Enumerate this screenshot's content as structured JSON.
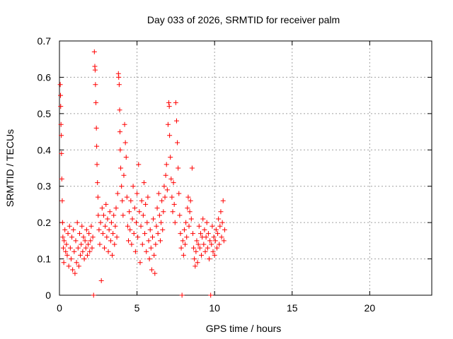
{
  "chart_data": {
    "type": "scatter",
    "title": "Day 033 of 2026, SRMTID for receiver palm",
    "xlabel": "GPS time / hours",
    "ylabel": "SRMTID / TECUs",
    "xlim": [
      0,
      24
    ],
    "ylim": [
      0,
      0.7
    ],
    "xticks": [
      0,
      5,
      10,
      15,
      20
    ],
    "yticks": [
      0,
      0.1,
      0.2,
      0.3,
      0.4,
      0.5,
      0.6,
      0.7
    ],
    "grid": true,
    "marker": "+",
    "color": "#ff0000",
    "series": [
      {
        "name": "SRMTID",
        "points": [
          [
            0.05,
            0.58
          ],
          [
            0.07,
            0.55
          ],
          [
            0.08,
            0.52
          ],
          [
            0.1,
            0.47
          ],
          [
            0.12,
            0.44
          ],
          [
            0.13,
            0.39
          ],
          [
            0.15,
            0.32
          ],
          [
            0.18,
            0.26
          ],
          [
            0.2,
            0.2
          ],
          [
            0.22,
            0.16
          ],
          [
            0.25,
            0.13
          ],
          [
            0.28,
            0.09
          ],
          [
            0.3,
            0.15
          ],
          [
            0.35,
            0.18
          ],
          [
            0.4,
            0.12
          ],
          [
            0.45,
            0.14
          ],
          [
            0.5,
            0.11
          ],
          [
            0.55,
            0.17
          ],
          [
            0.6,
            0.08
          ],
          [
            0.65,
            0.19
          ],
          [
            0.7,
            0.13
          ],
          [
            0.75,
            0.1
          ],
          [
            0.8,
            0.16
          ],
          [
            0.85,
            0.07
          ],
          [
            0.9,
            0.18
          ],
          [
            0.95,
            0.12
          ],
          [
            1.0,
            0.06
          ],
          [
            1.05,
            0.15
          ],
          [
            1.1,
            0.09
          ],
          [
            1.15,
            0.2
          ],
          [
            1.2,
            0.13
          ],
          [
            1.25,
            0.08
          ],
          [
            1.3,
            0.17
          ],
          [
            1.35,
            0.11
          ],
          [
            1.4,
            0.14
          ],
          [
            1.45,
            0.19
          ],
          [
            1.5,
            0.12
          ],
          [
            1.55,
            0.16
          ],
          [
            1.6,
            0.1
          ],
          [
            1.65,
            0.15
          ],
          [
            1.7,
            0.13
          ],
          [
            1.75,
            0.18
          ],
          [
            1.8,
            0.11
          ],
          [
            1.85,
            0.14
          ],
          [
            1.9,
            0.17
          ],
          [
            1.95,
            0.12
          ],
          [
            2.0,
            0.15
          ],
          [
            2.05,
            0.19
          ],
          [
            2.1,
            0.13
          ],
          [
            2.15,
            0.16
          ],
          [
            2.2,
            0.0
          ],
          [
            2.25,
            0.67
          ],
          [
            2.28,
            0.63
          ],
          [
            2.3,
            0.62
          ],
          [
            2.32,
            0.58
          ],
          [
            2.35,
            0.53
          ],
          [
            2.38,
            0.46
          ],
          [
            2.4,
            0.41
          ],
          [
            2.42,
            0.36
          ],
          [
            2.45,
            0.31
          ],
          [
            2.48,
            0.27
          ],
          [
            2.5,
            0.22
          ],
          [
            2.55,
            0.18
          ],
          [
            2.6,
            0.14
          ],
          [
            2.65,
            0.2
          ],
          [
            2.7,
            0.04
          ],
          [
            2.75,
            0.24
          ],
          [
            2.8,
            0.17
          ],
          [
            2.85,
            0.22
          ],
          [
            2.9,
            0.13
          ],
          [
            2.95,
            0.19
          ],
          [
            3.0,
            0.25
          ],
          [
            3.05,
            0.16
          ],
          [
            3.1,
            0.21
          ],
          [
            3.15,
            0.12
          ],
          [
            3.2,
            0.18
          ],
          [
            3.25,
            0.23
          ],
          [
            3.3,
            0.15
          ],
          [
            3.35,
            0.2
          ],
          [
            3.4,
            0.11
          ],
          [
            3.45,
            0.17
          ],
          [
            3.5,
            0.22
          ],
          [
            3.55,
            0.14
          ],
          [
            3.6,
            0.19
          ],
          [
            3.65,
            0.24
          ],
          [
            3.7,
            0.16
          ],
          [
            3.75,
            0.28
          ],
          [
            3.8,
            0.61
          ],
          [
            3.82,
            0.6
          ],
          [
            3.85,
            0.58
          ],
          [
            3.88,
            0.51
          ],
          [
            3.9,
            0.45
          ],
          [
            3.92,
            0.4
          ],
          [
            3.95,
            0.35
          ],
          [
            4.0,
            0.3
          ],
          [
            4.05,
            0.26
          ],
          [
            4.1,
            0.22
          ],
          [
            4.15,
            0.33
          ],
          [
            4.2,
            0.47
          ],
          [
            4.25,
            0.42
          ],
          [
            4.3,
            0.38
          ],
          [
            4.35,
            0.27
          ],
          [
            4.4,
            0.19
          ],
          [
            4.45,
            0.15
          ],
          [
            4.5,
            0.23
          ],
          [
            4.55,
            0.18
          ],
          [
            4.6,
            0.26
          ],
          [
            4.65,
            0.14
          ],
          [
            4.7,
            0.21
          ],
          [
            4.75,
            0.3
          ],
          [
            4.8,
            0.17
          ],
          [
            4.85,
            0.24
          ],
          [
            4.9,
            0.12
          ],
          [
            4.95,
            0.2
          ],
          [
            5.0,
            0.28
          ],
          [
            5.05,
            0.16
          ],
          [
            5.1,
            0.36
          ],
          [
            5.15,
            0.23
          ],
          [
            5.2,
            0.09
          ],
          [
            5.25,
            0.19
          ],
          [
            5.3,
            0.26
          ],
          [
            5.35,
            0.14
          ],
          [
            5.4,
            0.22
          ],
          [
            5.45,
            0.31
          ],
          [
            5.5,
            0.17
          ],
          [
            5.55,
            0.25
          ],
          [
            5.6,
            0.12
          ],
          [
            5.65,
            0.2
          ],
          [
            5.7,
            0.27
          ],
          [
            5.75,
            0.15
          ],
          [
            5.8,
            0.1
          ],
          [
            5.85,
            0.18
          ],
          [
            5.9,
            0.13
          ],
          [
            5.95,
            0.07
          ],
          [
            6.0,
            0.16
          ],
          [
            6.05,
            0.21
          ],
          [
            6.1,
            0.11
          ],
          [
            6.15,
            0.06
          ],
          [
            6.2,
            0.14
          ],
          [
            6.25,
            0.19
          ],
          [
            6.3,
            0.24
          ],
          [
            6.35,
            0.17
          ],
          [
            6.4,
            0.28
          ],
          [
            6.45,
            0.22
          ],
          [
            6.5,
            0.15
          ],
          [
            6.55,
            0.2
          ],
          [
            6.6,
            0.26
          ],
          [
            6.65,
            0.18
          ],
          [
            6.7,
            0.23
          ],
          [
            6.75,
            0.3
          ],
          [
            6.8,
            0.27
          ],
          [
            6.85,
            0.33
          ],
          [
            6.9,
            0.36
          ],
          [
            6.95,
            0.29
          ],
          [
            7.0,
            0.47
          ],
          [
            7.05,
            0.53
          ],
          [
            7.08,
            0.52
          ],
          [
            7.1,
            0.44
          ],
          [
            7.15,
            0.38
          ],
          [
            7.2,
            0.32
          ],
          [
            7.25,
            0.27
          ],
          [
            7.3,
            0.23
          ],
          [
            7.35,
            0.31
          ],
          [
            7.4,
            0.25
          ],
          [
            7.45,
            0.2
          ],
          [
            7.5,
            0.53
          ],
          [
            7.55,
            0.48
          ],
          [
            7.6,
            0.42
          ],
          [
            7.65,
            0.35
          ],
          [
            7.7,
            0.28
          ],
          [
            7.75,
            0.22
          ],
          [
            7.8,
            0.17
          ],
          [
            7.85,
            0.13
          ],
          [
            7.9,
            0.0
          ],
          [
            7.95,
            0.15
          ],
          [
            8.0,
            0.11
          ],
          [
            8.05,
            0.18
          ],
          [
            8.1,
            0.14
          ],
          [
            8.15,
            0.2
          ],
          [
            8.2,
            0.16
          ],
          [
            8.25,
            0.24
          ],
          [
            8.3,
            0.27
          ],
          [
            8.35,
            0.19
          ],
          [
            8.4,
            0.23
          ],
          [
            8.45,
            0.26
          ],
          [
            8.5,
            0.21
          ],
          [
            8.55,
            0.35
          ],
          [
            8.6,
            0.17
          ],
          [
            8.65,
            0.13
          ],
          [
            8.7,
            0.1
          ],
          [
            8.75,
            0.08
          ],
          [
            8.8,
            0.12
          ],
          [
            8.85,
            0.15
          ],
          [
            8.9,
            0.09
          ],
          [
            8.95,
            0.14
          ],
          [
            9.0,
            0.19
          ],
          [
            9.05,
            0.13
          ],
          [
            9.1,
            0.17
          ],
          [
            9.15,
            0.11
          ],
          [
            9.2,
            0.16
          ],
          [
            9.25,
            0.21
          ],
          [
            9.3,
            0.14
          ],
          [
            9.35,
            0.18
          ],
          [
            9.4,
            0.12
          ],
          [
            9.45,
            0.16
          ],
          [
            9.5,
            0.2
          ],
          [
            9.55,
            0.13
          ],
          [
            9.6,
            0.17
          ],
          [
            9.65,
            0.1
          ],
          [
            9.7,
            0.15
          ],
          [
            9.75,
            0.0
          ],
          [
            9.8,
            0.14
          ],
          [
            9.85,
            0.19
          ],
          [
            9.9,
            0.12
          ],
          [
            9.95,
            0.16
          ],
          [
            10.0,
            0.11
          ],
          [
            10.05,
            0.15
          ],
          [
            10.1,
            0.18
          ],
          [
            10.15,
            0.13
          ],
          [
            10.2,
            0.17
          ],
          [
            10.25,
            0.21
          ],
          [
            10.3,
            0.14
          ],
          [
            10.35,
            0.19
          ],
          [
            10.4,
            0.23
          ],
          [
            10.45,
            0.16
          ],
          [
            10.5,
            0.2
          ],
          [
            10.55,
            0.26
          ],
          [
            10.6,
            0.15
          ],
          [
            10.65,
            0.18
          ]
        ]
      }
    ]
  }
}
